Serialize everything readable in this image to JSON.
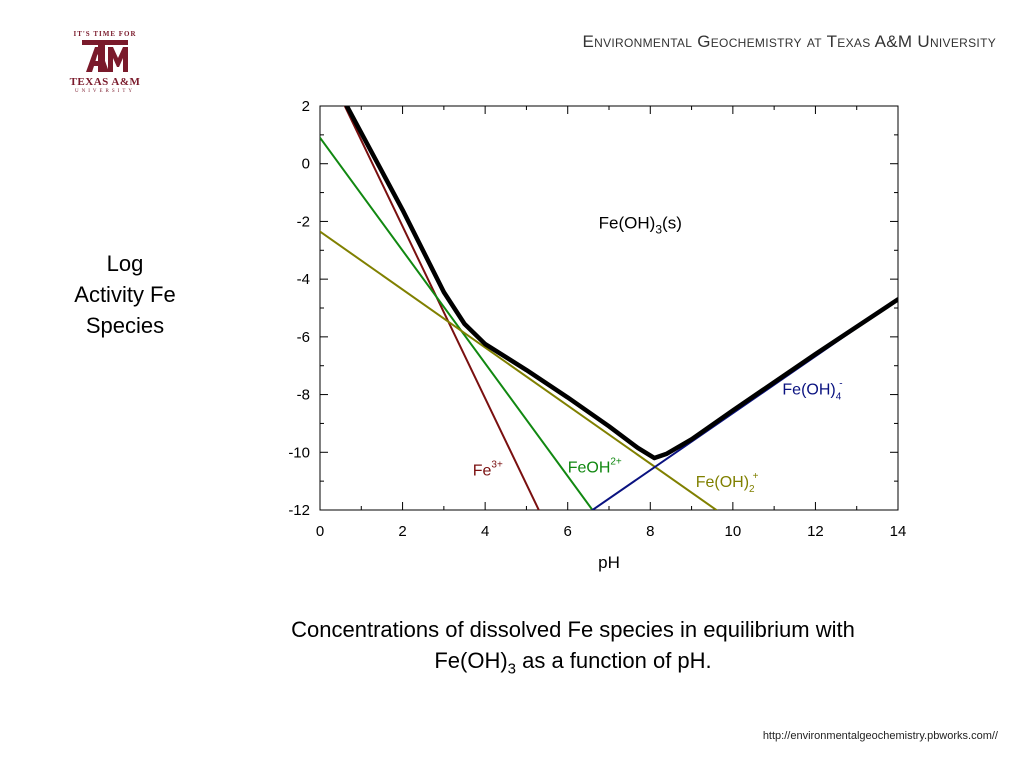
{
  "logo": {
    "tagline": "IT'S TIME FOR",
    "name": "TEXAS A&M",
    "university": "UNIVERSITY"
  },
  "header": "Environmental Geochemistry at Texas A&M University",
  "ylabel_lines": [
    "Log",
    "Activity Fe",
    "Species"
  ],
  "caption": {
    "line1": "Concentrations of dissolved Fe species in equilibrium with",
    "line2_pre": "Fe(OH)",
    "line2_sub": "3",
    "line2_post": " as a function of pH."
  },
  "footer_url": "http://environmentalgeochemistry.pbworks.com//",
  "chart_data": {
    "type": "line",
    "xlabel": "pH",
    "ylabel": "Log Activity Fe Species",
    "xlim": [
      0,
      14
    ],
    "ylim": [
      -12,
      2
    ],
    "xticks": [
      0,
      2,
      4,
      6,
      8,
      10,
      12,
      14
    ],
    "yticks": [
      2,
      0,
      -2,
      -4,
      -6,
      -8,
      -10,
      -12
    ],
    "region_label": {
      "base": "Fe(OH)",
      "sub": "3",
      "post": "(s)"
    },
    "series": [
      {
        "name": "Fe3+",
        "base": "Fe",
        "sup": "3+",
        "sub": "",
        "color": "#7a1010",
        "x": [
          0.6,
          5.3
        ],
        "y": [
          2.0,
          -12.0
        ]
      },
      {
        "name": "FeOH2+",
        "base": "FeOH",
        "sup": "2+",
        "sub": "",
        "color": "#118811",
        "x": [
          0.0,
          6.6
        ],
        "y": [
          0.9,
          -12.0
        ]
      },
      {
        "name": "Fe(OH)2+",
        "base": "Fe(OH)",
        "sup": "+",
        "sub": "2",
        "color": "#808000",
        "x": [
          0.0,
          9.6
        ],
        "y": [
          -2.35,
          -12.0
        ]
      },
      {
        "name": "Fe(OH)4-",
        "base": "Fe(OH)",
        "sup": "-",
        "sub": "4",
        "color": "#0a1280",
        "x": [
          6.6,
          14.0
        ],
        "y": [
          -12.0,
          -4.7
        ]
      },
      {
        "name": "Total",
        "base": "",
        "sup": "",
        "sub": "",
        "color": "#000000",
        "x": [
          0.65,
          2.0,
          3.0,
          3.5,
          4.0,
          5.0,
          6.0,
          7.0,
          7.7,
          8.1,
          8.4,
          9.0,
          10.0,
          12.0,
          14.0
        ],
        "y": [
          2.0,
          -1.6,
          -4.45,
          -5.55,
          -6.25,
          -7.15,
          -8.1,
          -9.1,
          -9.85,
          -10.2,
          -10.05,
          -9.55,
          -8.55,
          -6.6,
          -4.7
        ]
      }
    ]
  }
}
